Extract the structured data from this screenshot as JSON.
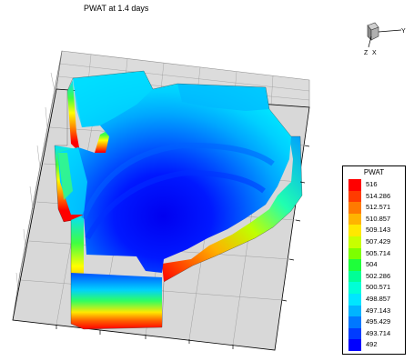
{
  "title": "PWAT at 1.4 days",
  "axis_triad": {
    "labels": [
      "Y",
      "Z",
      "X"
    ],
    "colors": {
      "line": "#000000",
      "cube": "#9a9a9a"
    }
  },
  "legend": {
    "title": "PWAT",
    "levels": [
      {
        "label": "516",
        "color": "#ff0000"
      },
      {
        "label": "514.286",
        "color": "#ff3b00"
      },
      {
        "label": "512.571",
        "color": "#ff7a00"
      },
      {
        "label": "510.857",
        "color": "#ffb400"
      },
      {
        "label": "509.143",
        "color": "#ffe800"
      },
      {
        "label": "507.429",
        "color": "#c8ff00"
      },
      {
        "label": "505.714",
        "color": "#7dff00"
      },
      {
        "label": "504",
        "color": "#1eff3a"
      },
      {
        "label": "502.286",
        "color": "#00ff96"
      },
      {
        "label": "500.571",
        "color": "#00ffd6"
      },
      {
        "label": "498.857",
        "color": "#00e6ff"
      },
      {
        "label": "497.143",
        "color": "#00b4ff"
      },
      {
        "label": "495.429",
        "color": "#0078ff"
      },
      {
        "label": "493.714",
        "color": "#003cff"
      },
      {
        "label": "492",
        "color": "#0000ff"
      }
    ]
  },
  "colors": {
    "grid_floor": "#d6d6d6",
    "grid_line": "#8c8c8c",
    "frame": "#000000"
  }
}
